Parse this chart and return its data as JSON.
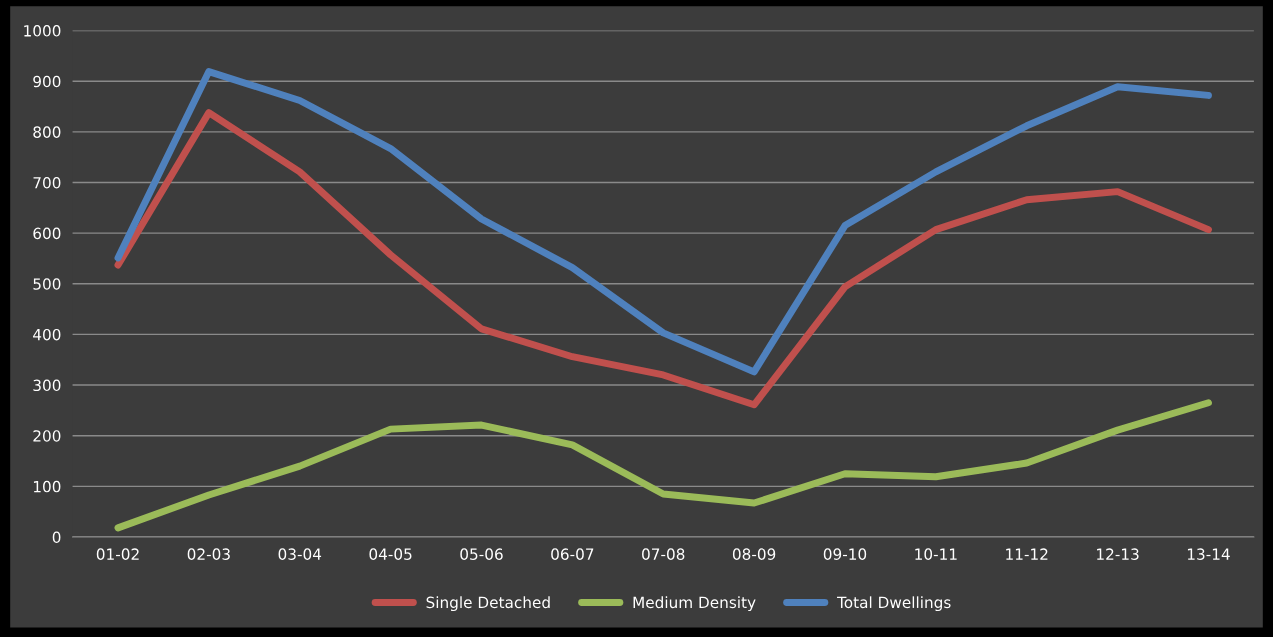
{
  "chart_data": {
    "type": "line",
    "categories": [
      "01-02",
      "02-03",
      "03-04",
      "04-05",
      "05-06",
      "06-07",
      "07-08",
      "08-09",
      "09-10",
      "10-11",
      "11-12",
      "12-13",
      "13-14"
    ],
    "series": [
      {
        "name": "Single Detached",
        "color": "#c0504d",
        "values": [
          537,
          838,
          721,
          557,
          411,
          356,
          320,
          261,
          494,
          607,
          666,
          682,
          607
        ]
      },
      {
        "name": "Medium Density",
        "color": "#9bbb59",
        "values": [
          18,
          83,
          140,
          213,
          221,
          182,
          85,
          67,
          125,
          119,
          146,
          211,
          265
        ]
      },
      {
        "name": "Total Dwellings",
        "color": "#4f81bd",
        "values": [
          551,
          919,
          862,
          767,
          628,
          532,
          403,
          326,
          615,
          721,
          812,
          889,
          872
        ]
      }
    ],
    "ylim": [
      0,
      1000
    ],
    "yticks": [
      0,
      100,
      200,
      300,
      400,
      500,
      600,
      700,
      800,
      900,
      1000
    ],
    "grid": "y",
    "legend": "bottom",
    "marker": "none",
    "line_style": "solid"
  }
}
